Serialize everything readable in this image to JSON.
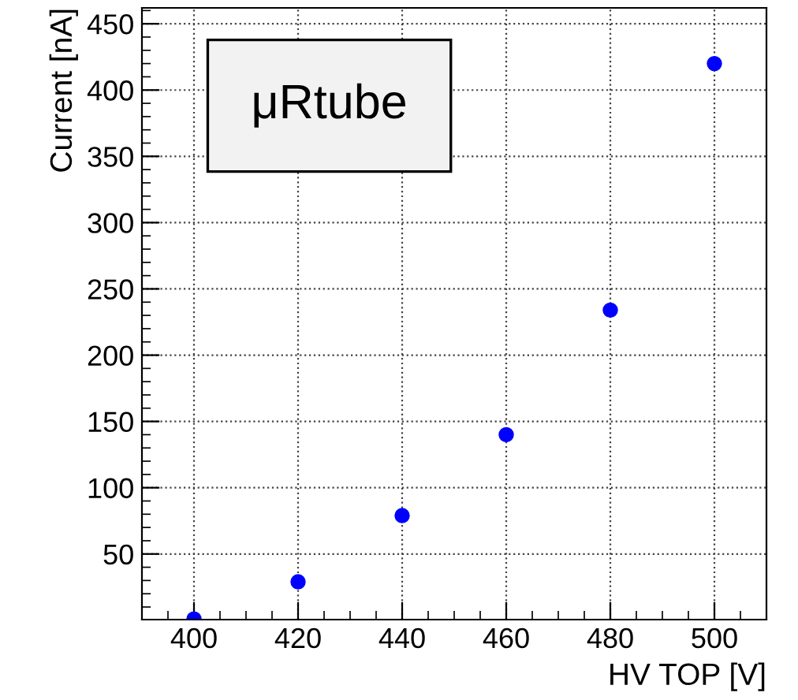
{
  "chart_data": {
    "type": "scatter",
    "xlabel": "HV TOP [V]",
    "ylabel": "Current [nA]",
    "x": [
      400,
      420,
      440,
      460,
      480,
      500
    ],
    "series": [
      {
        "color": "#0000ff",
        "values": [
          1,
          29,
          79,
          140,
          234,
          420
        ]
      }
    ],
    "xlim": [
      390,
      510
    ],
    "xticks": [
      400,
      420,
      440,
      460,
      480,
      500
    ],
    "ylim": [
      0.5,
      462
    ],
    "yticks": [
      50,
      100,
      150,
      200,
      250,
      300,
      350,
      400,
      450
    ],
    "grid": true,
    "marker": "circle",
    "annotations": [
      "μRtube"
    ]
  }
}
